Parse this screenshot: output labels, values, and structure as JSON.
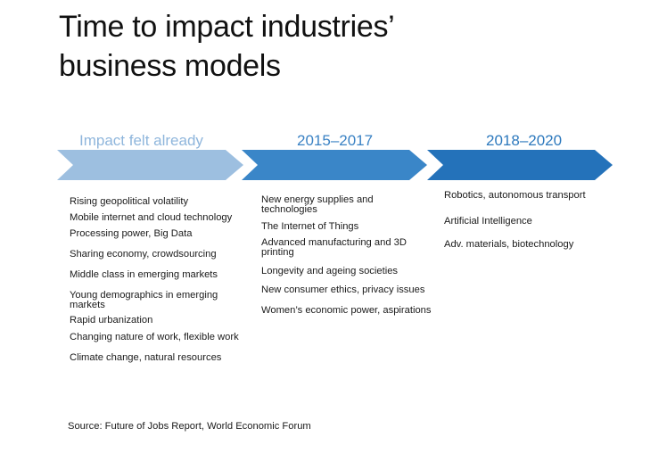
{
  "title_line1": "Time to impact industries’",
  "title_line2": "business models",
  "colors": {
    "phase_light": "#9dbfe0",
    "phase_mid": "#3a86c8",
    "phase_dark": "#2472ba",
    "label_light": "#8fb6dc",
    "label_mid": "#3a82c4",
    "label_dark": "#2d79bd"
  },
  "phases": [
    {
      "label": "Impact felt already",
      "items": [
        "Rising geopolitical volatility",
        "Mobile internet and cloud technology",
        "Processing power, Big Data",
        "Sharing economy, crowdsourcing",
        "Middle class in emerging markets",
        "Young demographics in emerging markets",
        "Rapid urbanization",
        "Changing nature of work, flexible work",
        "Climate change, natural resources"
      ]
    },
    {
      "label": "2015–2017",
      "items": [
        "New energy supplies and technologies",
        "The Internet of Things",
        "Advanced manufacturing and 3D printing",
        "Longevity and ageing societies",
        "New consumer ethics, privacy issues",
        "Women’s economic power, aspirations"
      ]
    },
    {
      "label": "2018–2020",
      "items": [
        "Robotics, autonomous transport",
        "Artificial Intelligence",
        "Adv. materials, biotechnology"
      ]
    }
  ],
  "source": "Source: Future of Jobs Report, World Economic Forum"
}
